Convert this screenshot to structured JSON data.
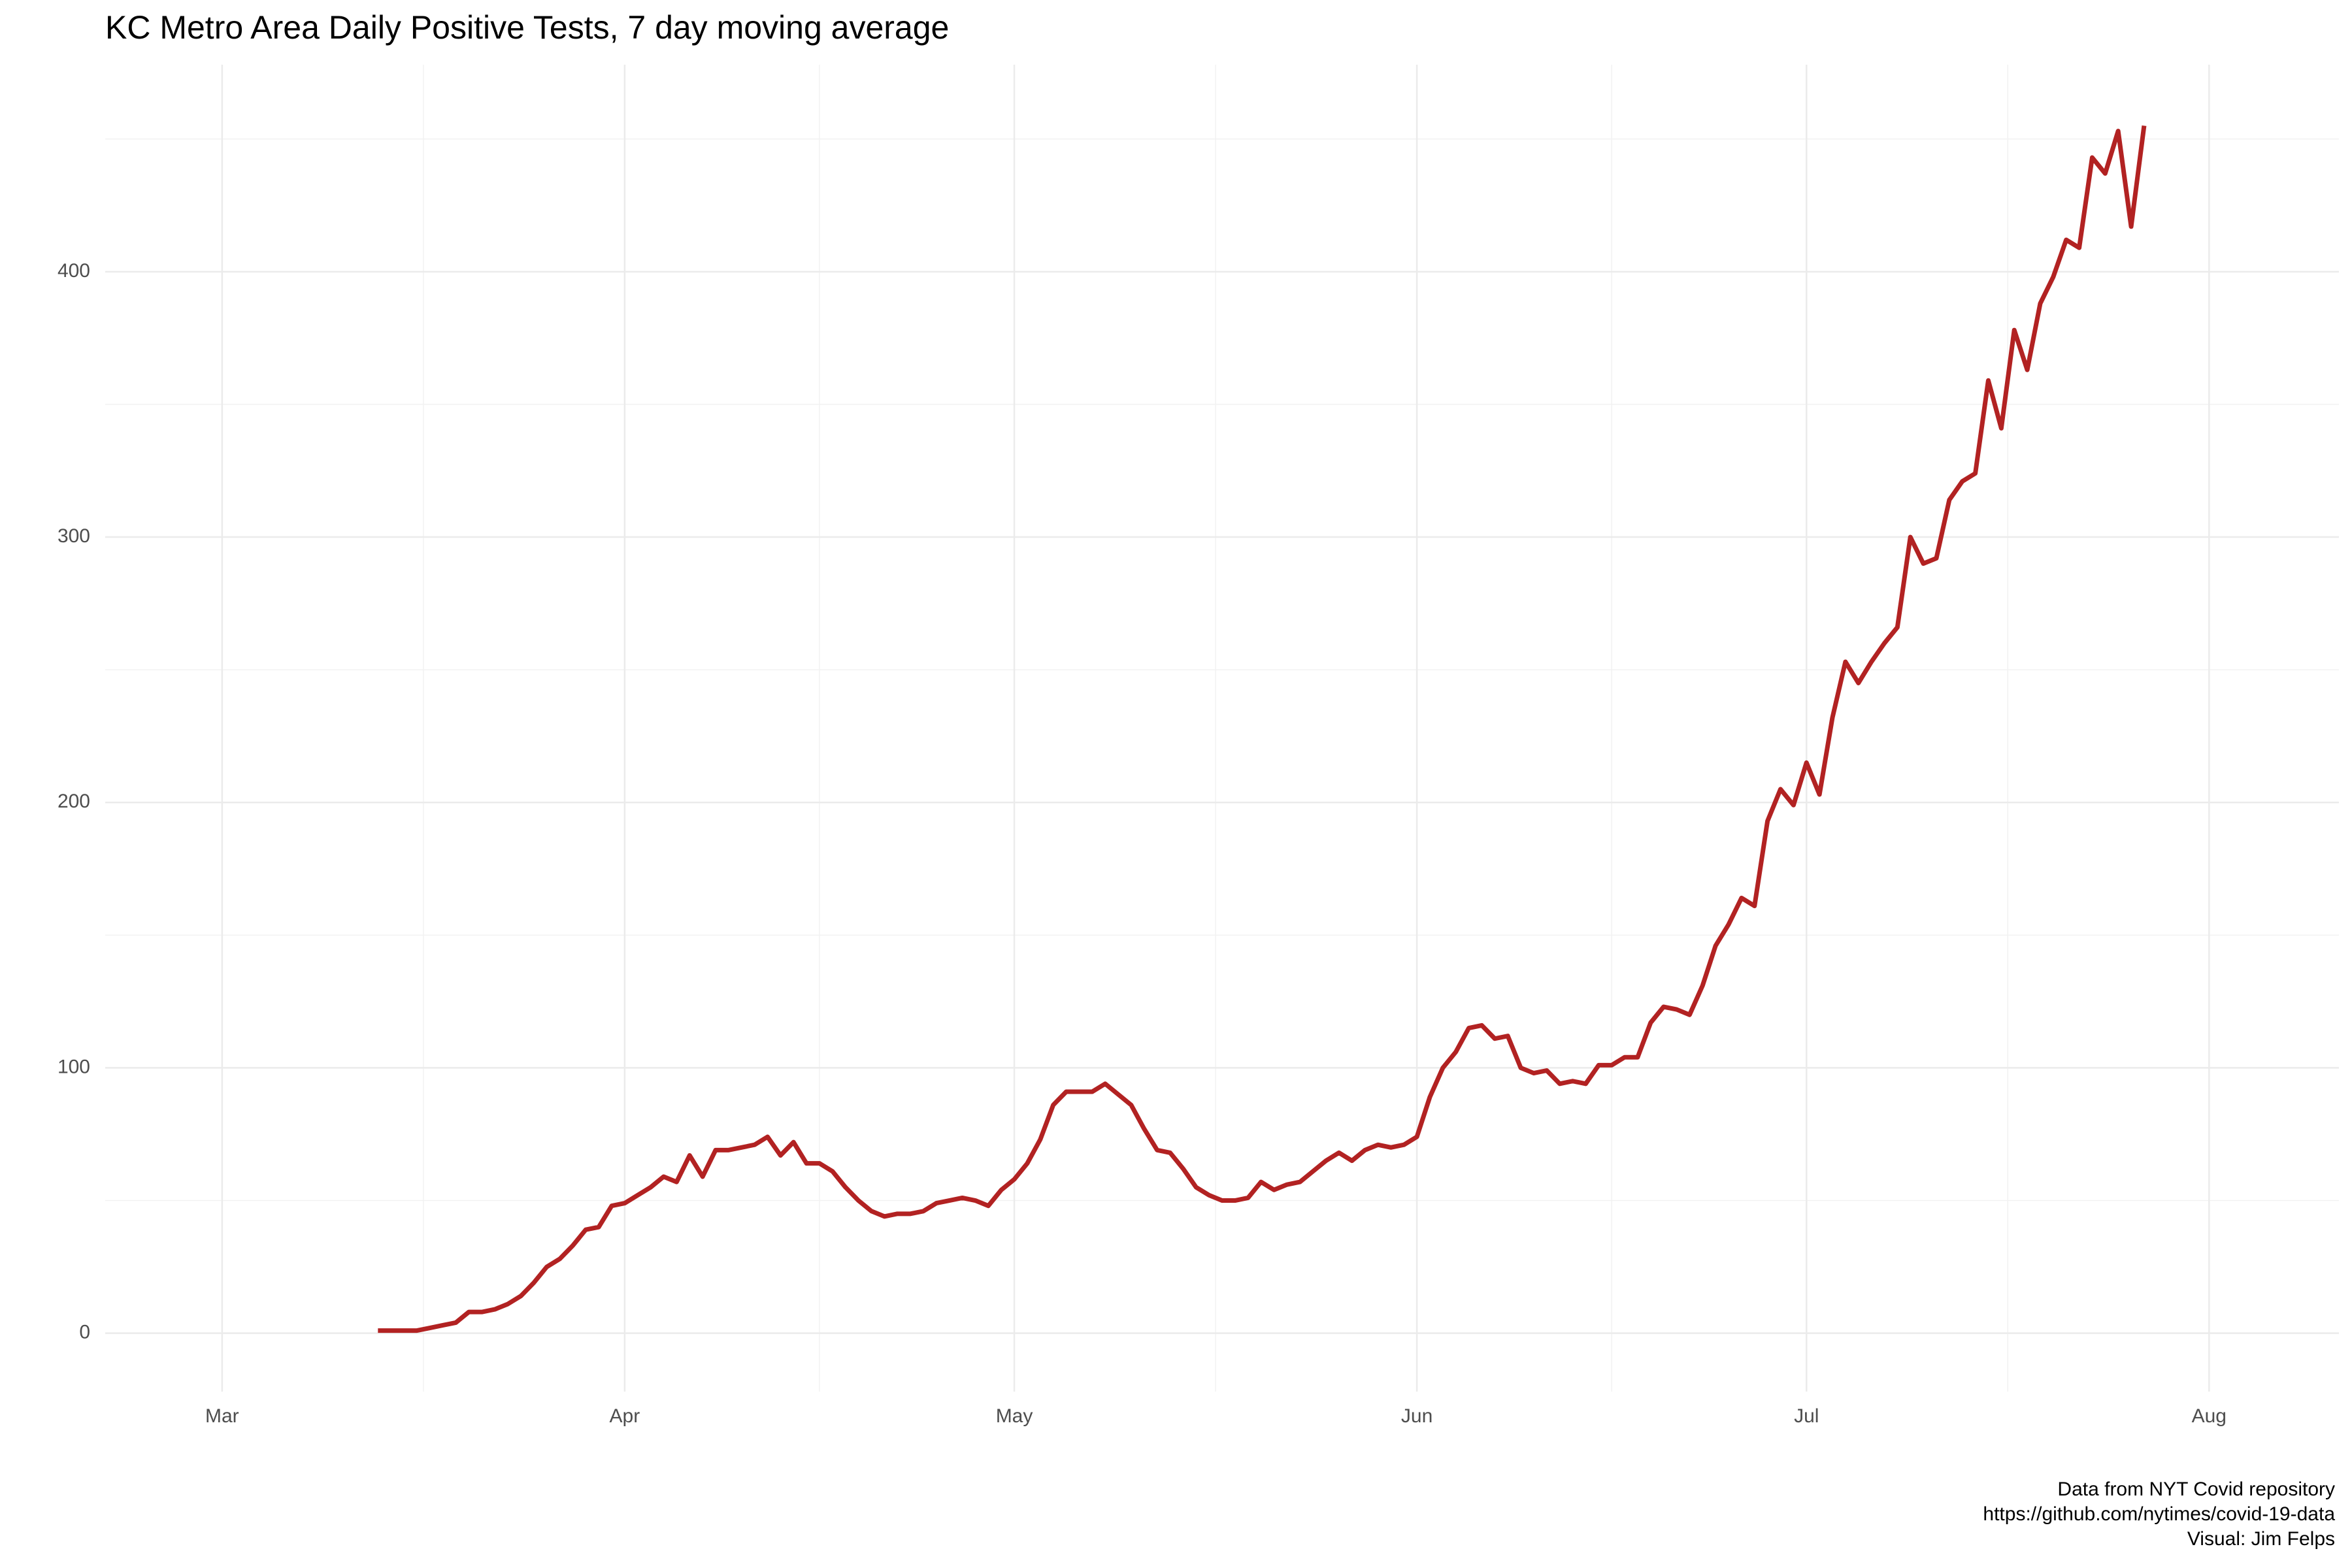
{
  "chart_data": {
    "type": "line",
    "title": "KC Metro Area Daily Positive Tests, 7 day moving average",
    "caption": [
      "Data from NYT Covid repository",
      "https://github.com/nytimes/covid-19-data",
      "Visual: Jim Felps"
    ],
    "x": [
      12,
      13,
      14,
      15,
      16,
      17,
      18,
      19,
      20,
      21,
      22,
      23,
      24,
      25,
      26,
      27,
      28,
      29,
      30,
      31,
      32,
      33,
      34,
      35,
      36,
      37,
      38,
      39,
      40,
      41,
      42,
      43,
      44,
      45,
      46,
      47,
      48,
      49,
      50,
      51,
      52,
      53,
      54,
      55,
      56,
      57,
      58,
      59,
      60,
      61,
      62,
      63,
      64,
      65,
      66,
      67,
      68,
      69,
      70,
      71,
      72,
      73,
      74,
      75,
      76,
      77,
      78,
      79,
      80,
      81,
      82,
      83,
      84,
      85,
      86,
      87,
      88,
      89,
      90,
      91,
      92,
      93,
      94,
      95,
      96,
      97,
      98,
      99,
      100,
      101,
      102,
      103,
      104,
      105,
      106,
      107,
      108,
      109,
      110,
      111,
      112,
      113,
      114,
      115,
      116,
      117,
      118,
      119,
      120,
      121,
      122,
      123,
      124,
      125,
      126,
      127,
      128,
      129,
      130,
      131,
      132,
      133,
      134,
      135,
      136,
      137,
      138,
      139,
      140,
      141,
      142,
      143,
      144,
      145,
      146,
      147,
      148
    ],
    "values": [
      1,
      1,
      1,
      1,
      2,
      3,
      4,
      8,
      8,
      9,
      11,
      14,
      19,
      25,
      28,
      33,
      39,
      40,
      48,
      49,
      52,
      55,
      59,
      57,
      67,
      59,
      69,
      69,
      70,
      71,
      74,
      67,
      72,
      64,
      64,
      61,
      55,
      50,
      46,
      44,
      45,
      45,
      46,
      49,
      50,
      51,
      50,
      48,
      54,
      58,
      64,
      73,
      86,
      91,
      91,
      91,
      94,
      90,
      86,
      77,
      69,
      68,
      62,
      55,
      52,
      50,
      50,
      51,
      57,
      54,
      56,
      57,
      61,
      65,
      68,
      65,
      69,
      71,
      70,
      71,
      74,
      89,
      100,
      106,
      115,
      116,
      111,
      112,
      100,
      98,
      99,
      94,
      95,
      94,
      101,
      101,
      104,
      104,
      117,
      123,
      122,
      120,
      131,
      146,
      154,
      164,
      161,
      193,
      205,
      199,
      215,
      203,
      232,
      253,
      245,
      253,
      260,
      266,
      300,
      290,
      292,
      314,
      321,
      324,
      359,
      341,
      378,
      363,
      388,
      398,
      412,
      409,
      443,
      437,
      453,
      417,
      455
    ],
    "color": "#b22222",
    "xlim": [
      -9,
      163
    ],
    "xticks": [
      {
        "value": 0,
        "label": "Mar"
      },
      {
        "value": 31,
        "label": "Apr"
      },
      {
        "value": 61,
        "label": "May"
      },
      {
        "value": 92,
        "label": "Jun"
      },
      {
        "value": 122,
        "label": "Jul"
      },
      {
        "value": 153,
        "label": "Aug"
      }
    ],
    "ylim": [
      -22,
      478
    ],
    "yticks": [
      0,
      100,
      200,
      300,
      400
    ],
    "grid": true
  }
}
